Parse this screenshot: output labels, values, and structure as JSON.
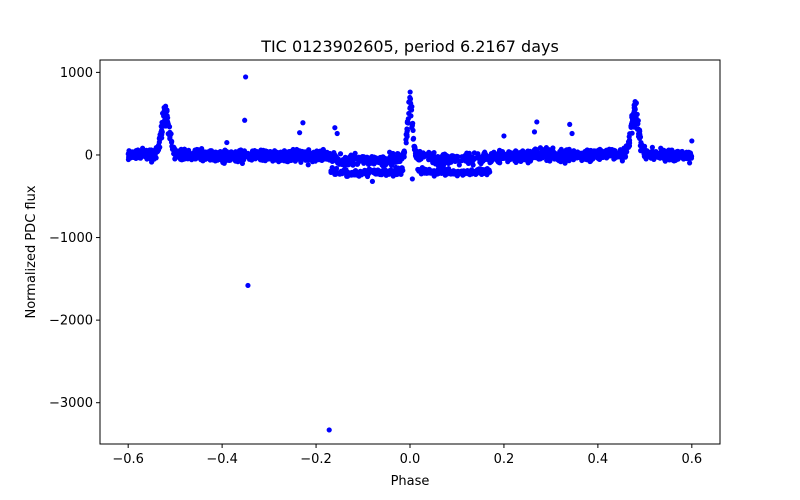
{
  "chart_data": {
    "type": "scatter",
    "title": "TIC 0123902605, period 6.2167 days",
    "xlabel": "Phase",
    "ylabel": "Normalized PDC flux",
    "xlim": [
      -0.66,
      0.66
    ],
    "ylim": [
      -3500,
      1150
    ],
    "xticks": [
      -0.6,
      -0.4,
      -0.2,
      0.0,
      0.2,
      0.4,
      0.6
    ],
    "xtick_labels": [
      "−0.6",
      "−0.4",
      "−0.2",
      "0.0",
      "0.2",
      "0.4",
      "0.6"
    ],
    "yticks": [
      1000,
      0,
      -1000,
      -2000,
      -3000
    ],
    "ytick_labels": [
      "1000",
      "0",
      "−1000",
      "−2000",
      "−3000"
    ],
    "grid": false,
    "marker_color": "#0000ff",
    "generator": {
      "seed": 20240613,
      "count": 2600,
      "x_range": [
        -0.6,
        0.6
      ],
      "noise_amp": 55,
      "base_curve": [
        [
          -0.6,
          20
        ],
        [
          -0.5,
          30
        ],
        [
          -0.4,
          -40
        ],
        [
          -0.3,
          -20
        ],
        [
          -0.2,
          -30
        ],
        [
          -0.17,
          -60
        ],
        [
          -0.15,
          -200
        ],
        [
          -0.1,
          -210
        ],
        [
          -0.05,
          -190
        ],
        [
          -0.02,
          -40
        ],
        [
          0.0,
          0
        ],
        [
          0.02,
          -40
        ],
        [
          0.05,
          -150
        ],
        [
          0.1,
          -150
        ],
        [
          0.15,
          -100
        ],
        [
          0.2,
          -40
        ],
        [
          0.3,
          -10
        ],
        [
          0.4,
          10
        ],
        [
          0.5,
          30
        ],
        [
          0.6,
          -20
        ]
      ],
      "lower_branch": {
        "x_range": [
          -0.17,
          0.17
        ],
        "offset": -180,
        "fraction": 0.45
      },
      "peaks": [
        {
          "center": -0.521,
          "width": 0.008,
          "height": 620
        },
        {
          "center": 0.0,
          "width": 0.005,
          "height": 820
        },
        {
          "center": 0.479,
          "width": 0.008,
          "height": 620
        }
      ]
    },
    "outliers": [
      {
        "x": -0.35,
        "y": 945
      },
      {
        "x": -0.352,
        "y": 420
      },
      {
        "x": -0.345,
        "y": -1580
      },
      {
        "x": -0.172,
        "y": -3330
      },
      {
        "x": -0.228,
        "y": 390
      },
      {
        "x": -0.235,
        "y": 270
      },
      {
        "x": 0.27,
        "y": 400
      },
      {
        "x": 0.265,
        "y": 280
      },
      {
        "x": 0.34,
        "y": 370
      },
      {
        "x": 0.345,
        "y": 260
      },
      {
        "x": -0.16,
        "y": 330
      },
      {
        "x": -0.155,
        "y": 260
      },
      {
        "x": 0.2,
        "y": 230
      },
      {
        "x": -0.39,
        "y": 150
      },
      {
        "x": 0.6,
        "y": 170
      },
      {
        "x": 0.005,
        "y": -290
      },
      {
        "x": -0.08,
        "y": -320
      }
    ]
  }
}
